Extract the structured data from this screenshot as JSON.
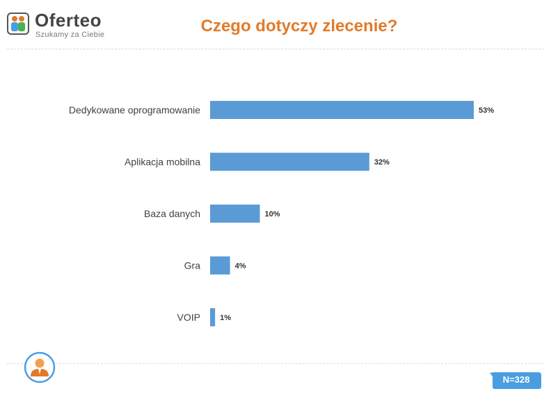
{
  "logo": {
    "name": "Oferteo",
    "tagline": "Szukamy za Ciebie"
  },
  "title": "Czego dotyczy zlecenie?",
  "colors": {
    "bar": "#5b9bd5",
    "title": "#e07b2a",
    "badge": "#4a9de0"
  },
  "sample_badge": "N=328",
  "chart_data": {
    "type": "bar",
    "orientation": "horizontal",
    "categories": [
      "Dedykowane oprogramowanie",
      "Aplikacja mobilna",
      "Baza danych",
      "Gra",
      "VOIP"
    ],
    "values": [
      53,
      32,
      10,
      4,
      1
    ],
    "value_labels": [
      "53%",
      "32%",
      "10%",
      "4%",
      "1%"
    ],
    "xlim": [
      0,
      53
    ],
    "grid": false,
    "legend": "none"
  }
}
